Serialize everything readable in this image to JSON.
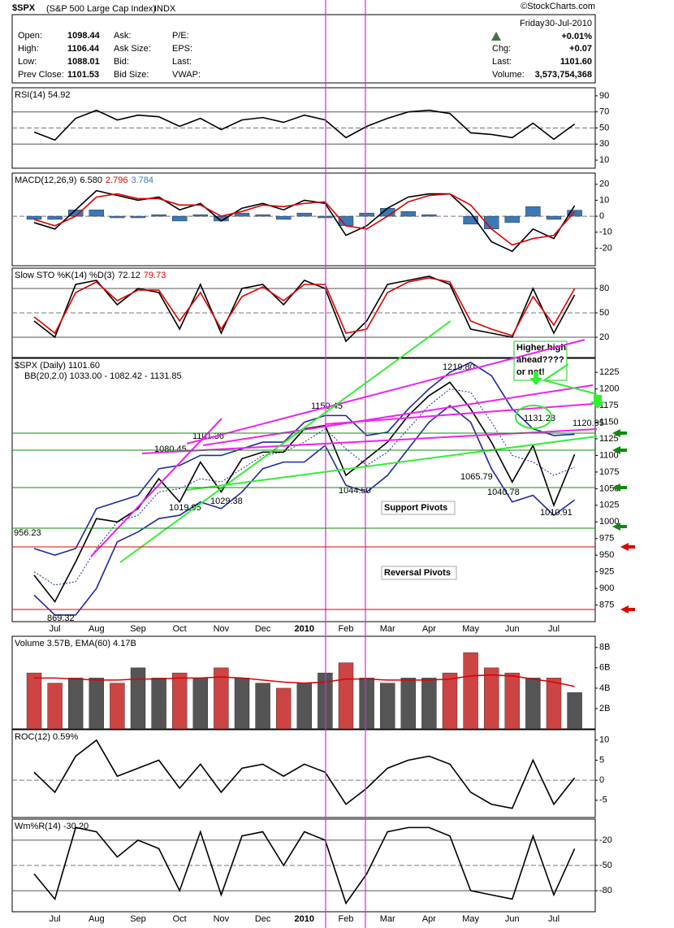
{
  "header": {
    "symbol": "$SPX",
    "name": "(S&P 500 Large Cap Index)",
    "exchange": "INDX",
    "source": "©StockCharts.com",
    "day": "Friday",
    "date": "30-Jul-2010",
    "change_pct": "+0.01%",
    "col1": [
      [
        "Open:",
        "1098.44"
      ],
      [
        "High:",
        "1106.44"
      ],
      [
        "Low:",
        "1088.01"
      ],
      [
        "Prev Close:",
        "1101.53"
      ]
    ],
    "col2": [
      "Ask:",
      "Ask Size:",
      "Bid:",
      "Bid Size:"
    ],
    "col3": [
      "P/E:",
      "EPS:",
      "Last:",
      "VWAP:"
    ],
    "col4": [
      [
        "Chg:",
        "+0.07"
      ],
      [
        "Last:",
        "1101.60"
      ],
      [
        "Volume:",
        "3,573,754,368"
      ]
    ]
  },
  "chart_data": [
    {
      "type": "line",
      "title": "RSI(14) 54.92",
      "ylim": [
        0,
        100
      ],
      "yticks": [
        10,
        30,
        50,
        70,
        90
      ],
      "hlines": [
        30,
        70
      ],
      "dashed_hlines": [
        50
      ],
      "series": [
        {
          "color": "#000000",
          "style": "line",
          "values": [
            45,
            35,
            62,
            72,
            60,
            66,
            64,
            52,
            62,
            48,
            60,
            63,
            57,
            66,
            60,
            38,
            52,
            62,
            70,
            72,
            68,
            44,
            42,
            38,
            56,
            36,
            54.92
          ]
        }
      ]
    },
    {
      "type": "combo",
      "title": "MACD(12,26,9)",
      "ylim": [
        -31,
        27
      ],
      "yticks": [
        -20,
        -10,
        0,
        10,
        20
      ],
      "dashed_hlines": [
        0
      ],
      "readouts": [
        {
          "value": 6.58,
          "label": "6.580",
          "color": "#000000"
        },
        {
          "value": 2.796,
          "label": "2.796",
          "color": "#dd0000"
        },
        {
          "value": 3.784,
          "label": "3.784",
          "color": "#3a78b8"
        }
      ],
      "series": [
        {
          "color": "#3a78b8",
          "style": "bar",
          "values": [
            -2,
            -2,
            4,
            4,
            -1,
            -1,
            1,
            -3,
            1,
            -3,
            2,
            1,
            -2,
            2,
            -1,
            -6,
            2,
            5,
            3,
            1,
            0,
            -5,
            -8,
            -4,
            6,
            -2,
            3.784
          ]
        },
        {
          "color": "#000000",
          "style": "line",
          "values": [
            -4,
            -8,
            4,
            16,
            13,
            10,
            12,
            4,
            8,
            -3,
            5,
            8,
            4,
            10,
            8,
            -12,
            -6,
            5,
            12,
            14,
            14,
            2,
            -16,
            -22,
            -8,
            -14,
            6.58
          ]
        },
        {
          "color": "#dd0000",
          "style": "line",
          "values": [
            -2,
            -6,
            0,
            12,
            14,
            11,
            11,
            7,
            7,
            0,
            3,
            7,
            6,
            8,
            9,
            -6,
            -8,
            0,
            9,
            13,
            14,
            7,
            -8,
            -18,
            -14,
            -12,
            2.796
          ]
        }
      ]
    },
    {
      "type": "line",
      "title": "Slow STO %K(14) %D(3)",
      "ylim": [
        -5,
        105
      ],
      "yticks": [
        20,
        50,
        80
      ],
      "hlines": [
        20,
        80
      ],
      "dashed_hlines": [
        50
      ],
      "readouts": [
        {
          "value": 72.12,
          "label": "72.12",
          "color": "#000000"
        },
        {
          "value": 79.73,
          "label": "79.73",
          "color": "#dd0000"
        }
      ],
      "series": [
        {
          "color": "#000000",
          "style": "line",
          "values": [
            40,
            20,
            85,
            90,
            60,
            80,
            75,
            30,
            85,
            25,
            80,
            85,
            60,
            90,
            80,
            15,
            40,
            85,
            90,
            95,
            85,
            30,
            25,
            20,
            80,
            25,
            72.12
          ]
        },
        {
          "color": "#dd0000",
          "style": "line",
          "values": [
            45,
            25,
            75,
            88,
            65,
            78,
            78,
            40,
            75,
            30,
            70,
            82,
            65,
            85,
            85,
            25,
            30,
            75,
            88,
            93,
            88,
            40,
            30,
            22,
            70,
            35,
            79.73
          ]
        }
      ]
    },
    {
      "type": "line",
      "title": "$SPX (Daily) 1101.60",
      "subtitle": "BB(20,2.0) 1033.00 - 1082.42 - 1131.85",
      "ylim": [
        850,
        1246
      ],
      "yticks": [
        875,
        900,
        925,
        950,
        975,
        1000,
        1025,
        1050,
        1075,
        1100,
        1125,
        1150,
        1175,
        1200,
        1225
      ],
      "categories": [
        null,
        "Jul",
        null,
        "Aug",
        null,
        "Sep",
        null,
        "Oct",
        null,
        "Nov",
        null,
        "Dec",
        null,
        "2010",
        null,
        "Feb",
        null,
        "Mar",
        null,
        "Apr",
        null,
        "May",
        null,
        "Jun",
        null,
        "Jul",
        null
      ],
      "series": [
        {
          "color": "#1c2a9a",
          "style": "line",
          "values": [
            960,
            950,
            960,
            1020,
            1030,
            1040,
            1080,
            1085,
            1100,
            1100,
            1110,
            1120,
            1120,
            1150,
            1160,
            1160,
            1130,
            1135,
            1170,
            1200,
            1225,
            1240,
            1220,
            1170,
            1140,
            1130,
            1131.85
          ]
        },
        {
          "color": "#1c2a9a",
          "style": "dotted",
          "values": [
            925,
            905,
            910,
            960,
            1000,
            1010,
            1045,
            1050,
            1065,
            1060,
            1080,
            1100,
            1105,
            1120,
            1140,
            1110,
            1085,
            1105,
            1140,
            1175,
            1200,
            1195,
            1150,
            1100,
            1090,
            1070,
            1082.42
          ]
        },
        {
          "color": "#1c2a9a",
          "style": "line",
          "values": [
            890,
            860,
            860,
            900,
            970,
            985,
            1005,
            1010,
            1030,
            1020,
            1045,
            1080,
            1090,
            1090,
            1115,
            1055,
            1045,
            1070,
            1110,
            1150,
            1175,
            1150,
            1080,
            1030,
            1040,
            1010,
            1033
          ]
        },
        {
          "color": "#000000",
          "style": "line",
          "values": [
            920,
            880,
            940,
            1005,
            1000,
            1020,
            1065,
            1030,
            1090,
            1045,
            1095,
            1105,
            1105,
            1140,
            1145,
            1070,
            1095,
            1120,
            1160,
            1190,
            1210,
            1170,
            1120,
            1060,
            1115,
            1025,
            1101.6
          ]
        }
      ],
      "annotations": [
        {
          "value": 1219.8,
          "label": "1219.80"
        },
        {
          "value": 1150.45,
          "label": "1150.45"
        },
        {
          "value": 1101.36,
          "label": "1101.36"
        },
        {
          "value": 1080.45,
          "label": "1080.45"
        },
        {
          "value": 1131.23,
          "label": "1131.23"
        },
        {
          "value": 1120.95,
          "label": "1120.95"
        },
        {
          "value": 1065.79,
          "label": "1065.79"
        },
        {
          "value": 1044.5,
          "label": "1044.50"
        },
        {
          "value": 1040.78,
          "label": "1040.78"
        },
        {
          "value": 1029.38,
          "label": "1029.38"
        },
        {
          "value": 1019.95,
          "label": "1019.95"
        },
        {
          "value": 1010.91,
          "label": "1010.91"
        },
        {
          "value": 956.23,
          "label": "956.23"
        },
        {
          "value": 869.32,
          "label": "869.32"
        }
      ],
      "notes": [
        {
          "lines": [
            "Higher high",
            "ahead????",
            "or not!"
          ],
          "color": "#22cc22"
        },
        {
          "lines": [
            "Support Pivots"
          ],
          "color": "#118811"
        },
        {
          "lines": [
            "Reversal Pivots"
          ],
          "color": "#dd0000"
        }
      ]
    },
    {
      "type": "combo",
      "title": "Volume 3.57B, EMA(60) 4.17B",
      "ylim": [
        0,
        9100000000
      ],
      "yticks": [
        {
          "value": 2000000000,
          "label": "2B"
        },
        {
          "value": 4000000000,
          "label": "4B"
        },
        {
          "value": 6000000000,
          "label": "6B"
        },
        {
          "value": 8000000000,
          "label": "8B"
        }
      ],
      "series": [
        {
          "color": "#555555",
          "style": "bar",
          "colors": [
            "#cc4444",
            "#cc4444",
            "#555555",
            "#555555",
            "#cc4444",
            "#555555",
            "#555555",
            "#cc4444",
            "#555555",
            "#cc4444",
            "#555555",
            "#555555",
            "#cc4444",
            "#555555",
            "#555555",
            "#cc4444",
            "#555555",
            "#555555",
            "#555555",
            "#555555",
            "#cc4444",
            "#cc4444",
            "#cc4444",
            "#cc4444",
            "#555555",
            "#cc4444",
            "#555555"
          ],
          "values": [
            5500000000,
            4500000000,
            5000000000,
            5000000000,
            4500000000,
            6000000000,
            5000000000,
            5500000000,
            5000000000,
            6000000000,
            5000000000,
            4500000000,
            4000000000,
            4500000000,
            5500000000,
            6500000000,
            5000000000,
            4500000000,
            5000000000,
            5000000000,
            5500000000,
            7500000000,
            6000000000,
            5500000000,
            5000000000,
            5000000000,
            3570000000
          ]
        },
        {
          "color": "#dd0000",
          "style": "line",
          "values": [
            5000000000,
            5000000000,
            4900000000,
            4800000000,
            4800000000,
            4900000000,
            4900000000,
            5000000000,
            5000000000,
            5100000000,
            5000000000,
            4800000000,
            4600000000,
            4500000000,
            4600000000,
            4900000000,
            4900000000,
            4800000000,
            4800000000,
            4800000000,
            4900000000,
            5200000000,
            5300000000,
            5200000000,
            4900000000,
            4600000000,
            4170000000
          ]
        }
      ]
    },
    {
      "type": "line",
      "title": "ROC(12) 0.59%",
      "ylim": [
        -9.3,
        12.6
      ],
      "yticks": [
        -5,
        0,
        5,
        10
      ],
      "dashed_hlines": [
        0
      ],
      "series": [
        {
          "color": "#000000",
          "style": "line",
          "values": [
            2,
            -3,
            6,
            10,
            1,
            3,
            5,
            -2,
            4,
            -3,
            3,
            4,
            1,
            4,
            2,
            -6,
            -2,
            3,
            5,
            6,
            4,
            -3,
            -6,
            -7,
            5,
            -6,
            0.59
          ]
        }
      ]
    },
    {
      "type": "line",
      "title": "Wm%R(14) -30.20",
      "ylim": [
        -105,
        5
      ],
      "yticks": [
        -20,
        -50,
        -80
      ],
      "hlines": [
        -20,
        -80
      ],
      "dashed_hlines": [
        -50
      ],
      "categories": [
        null,
        "Jul",
        null,
        "Aug",
        null,
        "Sep",
        null,
        "Oct",
        null,
        "Nov",
        null,
        "Dec",
        null,
        "2010",
        null,
        "Feb",
        null,
        "Mar",
        null,
        "Apr",
        null,
        "May",
        null,
        "Jun",
        null,
        "Jul",
        null
      ],
      "series": [
        {
          "color": "#000000",
          "style": "line",
          "values": [
            -60,
            -90,
            -5,
            -10,
            -40,
            -20,
            -30,
            -80,
            -10,
            -85,
            -15,
            -10,
            -50,
            -10,
            -20,
            -95,
            -60,
            -10,
            -5,
            -5,
            -15,
            -80,
            -85,
            -90,
            -15,
            -85,
            -30.2
          ]
        }
      ]
    }
  ]
}
